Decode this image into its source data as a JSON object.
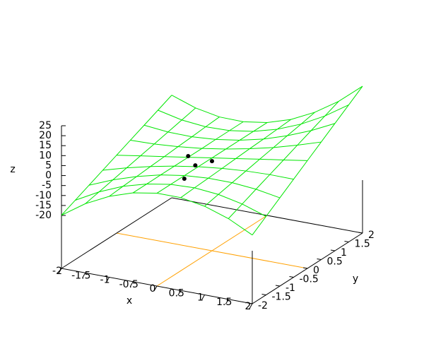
{
  "chart_data": {
    "type": "surface",
    "x": [
      -2,
      -1.5,
      -1,
      -0.5,
      0,
      0.5,
      1,
      1.5,
      2
    ],
    "y": [
      -2,
      -1.5,
      -1,
      -0.5,
      0,
      0.5,
      1,
      1.5,
      2
    ],
    "z": [
      [
        -19.9,
        -11.9,
        -6.0,
        -2.0,
        0,
        0,
        -2.1,
        -6.1,
        -12.1
      ],
      [
        -16.8,
        -10.4,
        -5.4,
        -2.0,
        0,
        0.5,
        -0.6,
        -3.2,
        -7.2
      ],
      [
        -13.7,
        -8.8,
        -4.9,
        -1.9,
        0,
        0.9,
        0.85,
        -0.2,
        -2.3
      ],
      [
        -10.6,
        -7.2,
        -4.3,
        -1.9,
        0,
        1.4,
        2.3,
        2.7,
        2.6
      ],
      [
        -7.5,
        -5.6,
        -3.8,
        -1.9,
        0,
        1.9,
        3.8,
        5.6,
        7.5
      ],
      [
        -4.4,
        -4.1,
        -3.2,
        -1.9,
        0,
        2.4,
        5.2,
        8.6,
        12.4
      ],
      [
        -1.3,
        -2.5,
        -2.7,
        -1.8,
        0,
        2.8,
        6.7,
        11.5,
        17.3
      ],
      [
        1.8,
        -0.9,
        -2.1,
        -1.8,
        0,
        3.3,
        8.1,
        14.4,
        22.2
      ],
      [
        4.9,
        0.7,
        -1.6,
        -1.8,
        0,
        3.8,
        9.6,
        17.3,
        27.1
      ]
    ],
    "color": "#00e600",
    "points": {
      "x": [
        -0.5,
        -0.35,
        0,
        -0.58
      ],
      "y": [
        0,
        0,
        0,
        0
      ],
      "z": [
        -1.3,
        -5.3,
        -1.6,
        -13
      ],
      "color": "#000000"
    },
    "xlim": [
      -2,
      2
    ],
    "ylim": [
      -2,
      2
    ],
    "zlim": [
      -20,
      25
    ],
    "xticks": [
      -2,
      -1.5,
      -1,
      -0.5,
      0,
      0.5,
      1,
      1.5,
      2
    ],
    "yticks": [
      -2,
      -1.5,
      -1,
      -0.5,
      0,
      0.5,
      1,
      1.5,
      2
    ],
    "zticks": [
      -20,
      -15,
      -10,
      -5,
      0,
      5,
      10,
      15,
      20,
      25
    ],
    "xlabel": "x",
    "ylabel": "y",
    "zlabel": "z",
    "zeroaxis_color": "#ffa000"
  }
}
